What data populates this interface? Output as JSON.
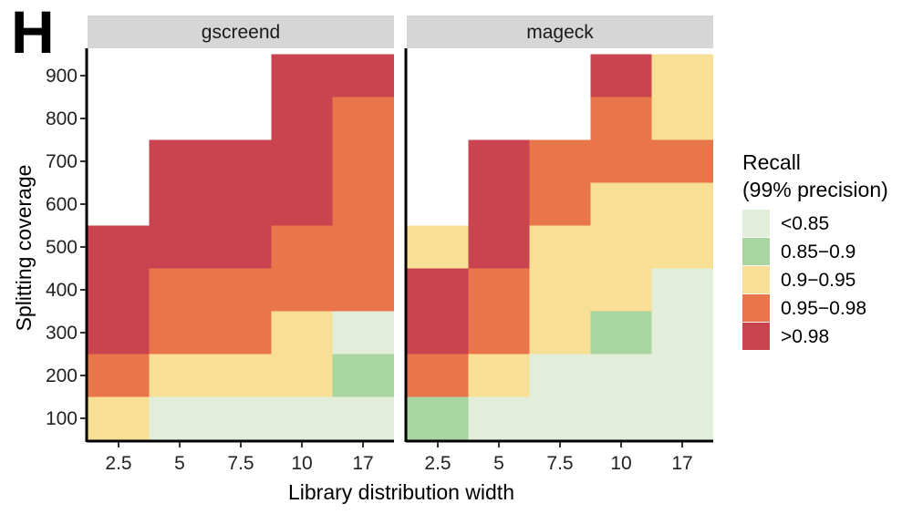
{
  "panel_label": "H",
  "chart_data": {
    "type": "heatmap",
    "xlabel": "Library distribution width",
    "ylabel": "Splitting coverage",
    "x_categories": [
      "2.5",
      "5",
      "7.5",
      "10",
      "17"
    ],
    "y_categories": [
      "100",
      "200",
      "300",
      "400",
      "500",
      "600",
      "700",
      "800",
      "900"
    ],
    "y_ticks": [
      "100",
      "200",
      "300",
      "400",
      "500",
      "600",
      "700",
      "800",
      "900"
    ],
    "legend": {
      "title_line1": "Recall",
      "title_line2": "(99% precision)",
      "placement": "right",
      "entries": [
        {
          "label": "<0.85",
          "color": "#e2eed9"
        },
        {
          "label": "0.85−0.9",
          "color": "#a8d5a0"
        },
        {
          "label": "0.9−0.95",
          "color": "#f8df96"
        },
        {
          "label": "0.95−0.98",
          "color": "#e8764a"
        },
        {
          "label": ">0.98",
          "color": "#c9444f"
        }
      ]
    },
    "panels": [
      {
        "title": "gscreend",
        "note": "rows listed from coverage 100 to 900; values are legend category indices (0 = <0.85 ... 4 = >0.98); null = no data",
        "grid": [
          [
            2,
            0,
            0,
            0,
            0
          ],
          [
            3,
            2,
            2,
            2,
            1
          ],
          [
            4,
            3,
            3,
            2,
            0
          ],
          [
            4,
            3,
            3,
            3,
            3
          ],
          [
            4,
            4,
            4,
            3,
            3
          ],
          [
            null,
            4,
            4,
            4,
            3
          ],
          [
            null,
            4,
            4,
            4,
            3
          ],
          [
            null,
            null,
            null,
            4,
            3
          ],
          [
            null,
            null,
            null,
            4,
            4
          ]
        ]
      },
      {
        "title": "mageck",
        "grid": [
          [
            1,
            0,
            0,
            0,
            0
          ],
          [
            3,
            2,
            0,
            0,
            0
          ],
          [
            4,
            3,
            2,
            1,
            0
          ],
          [
            4,
            3,
            2,
            2,
            0
          ],
          [
            2,
            4,
            2,
            2,
            2
          ],
          [
            null,
            4,
            3,
            2,
            2
          ],
          [
            null,
            4,
            3,
            3,
            3
          ],
          [
            null,
            null,
            null,
            3,
            2
          ],
          [
            null,
            null,
            null,
            4,
            2
          ]
        ]
      }
    ]
  }
}
